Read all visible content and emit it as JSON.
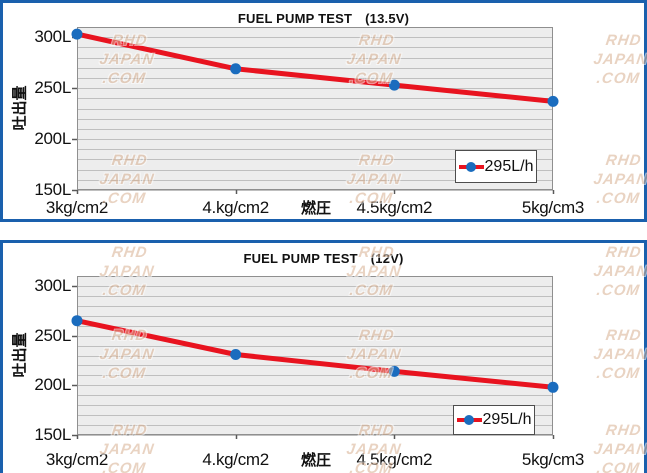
{
  "colors": {
    "panel_border": "#1a60ad",
    "plot_bg": "#ededed",
    "grid": "#bfbfbf",
    "plot_border": "#8f8f8f",
    "tick": "#595959",
    "line": "#e8131f",
    "marker": "#1a6cbe",
    "watermark": "#d8b091"
  },
  "watermark": {
    "lines": [
      "RHD",
      "JAPAN",
      ".COM"
    ]
  },
  "charts": [
    {
      "title": "FUEL PUMP TEST",
      "voltage": "(13.5V)",
      "y_axis_title": "吐出量",
      "x_axis_title": "燃圧",
      "legend_label": "295L/h",
      "y_tick_labels": [
        "300L",
        "250L",
        "200L",
        "150L"
      ],
      "x_tick_labels": [
        "3kg/cm2",
        "4.kg/cm2",
        "4.5kg/cm2",
        "5kg/cm3"
      ]
    },
    {
      "title": "FUEL PUMP TEST",
      "voltage": "(12V)",
      "y_axis_title": "吐出量",
      "x_axis_title": "燃圧",
      "legend_label": "295L/h",
      "y_tick_labels": [
        "300L",
        "250L",
        "200L",
        "150L"
      ],
      "x_tick_labels": [
        "3kg/cm2",
        "4.kg/cm2",
        "4.5kg/cm2",
        "5kg/cm3"
      ]
    }
  ],
  "chart_data": [
    {
      "type": "line",
      "title": "FUEL PUMP TEST (13.5V)",
      "categories": [
        "3kg/cm2",
        "4.kg/cm2",
        "4.5kg/cm2",
        "5kg/cm3"
      ],
      "series": [
        {
          "name": "295L/h",
          "values": [
            303,
            269,
            253,
            237
          ]
        }
      ],
      "xlabel": "燃圧",
      "ylabel": "吐出量",
      "ylim": [
        150,
        310
      ],
      "y_major_ticks": [
        300,
        250,
        200,
        150
      ],
      "y_minor_step": 10,
      "grid": true,
      "legend_position": "inside-bottom-right"
    },
    {
      "type": "line",
      "title": "FUEL PUMP TEST (12V)",
      "categories": [
        "3kg/cm2",
        "4.kg/cm2",
        "4.5kg/cm2",
        "5kg/cm3"
      ],
      "series": [
        {
          "name": "295L/h",
          "values": [
            265,
            231,
            214,
            198
          ]
        }
      ],
      "xlabel": "燃圧",
      "ylabel": "吐出量",
      "ylim": [
        150,
        310
      ],
      "y_major_ticks": [
        300,
        250,
        200,
        150
      ],
      "y_minor_step": 10,
      "grid": true,
      "legend_position": "inside-bottom-right"
    }
  ]
}
